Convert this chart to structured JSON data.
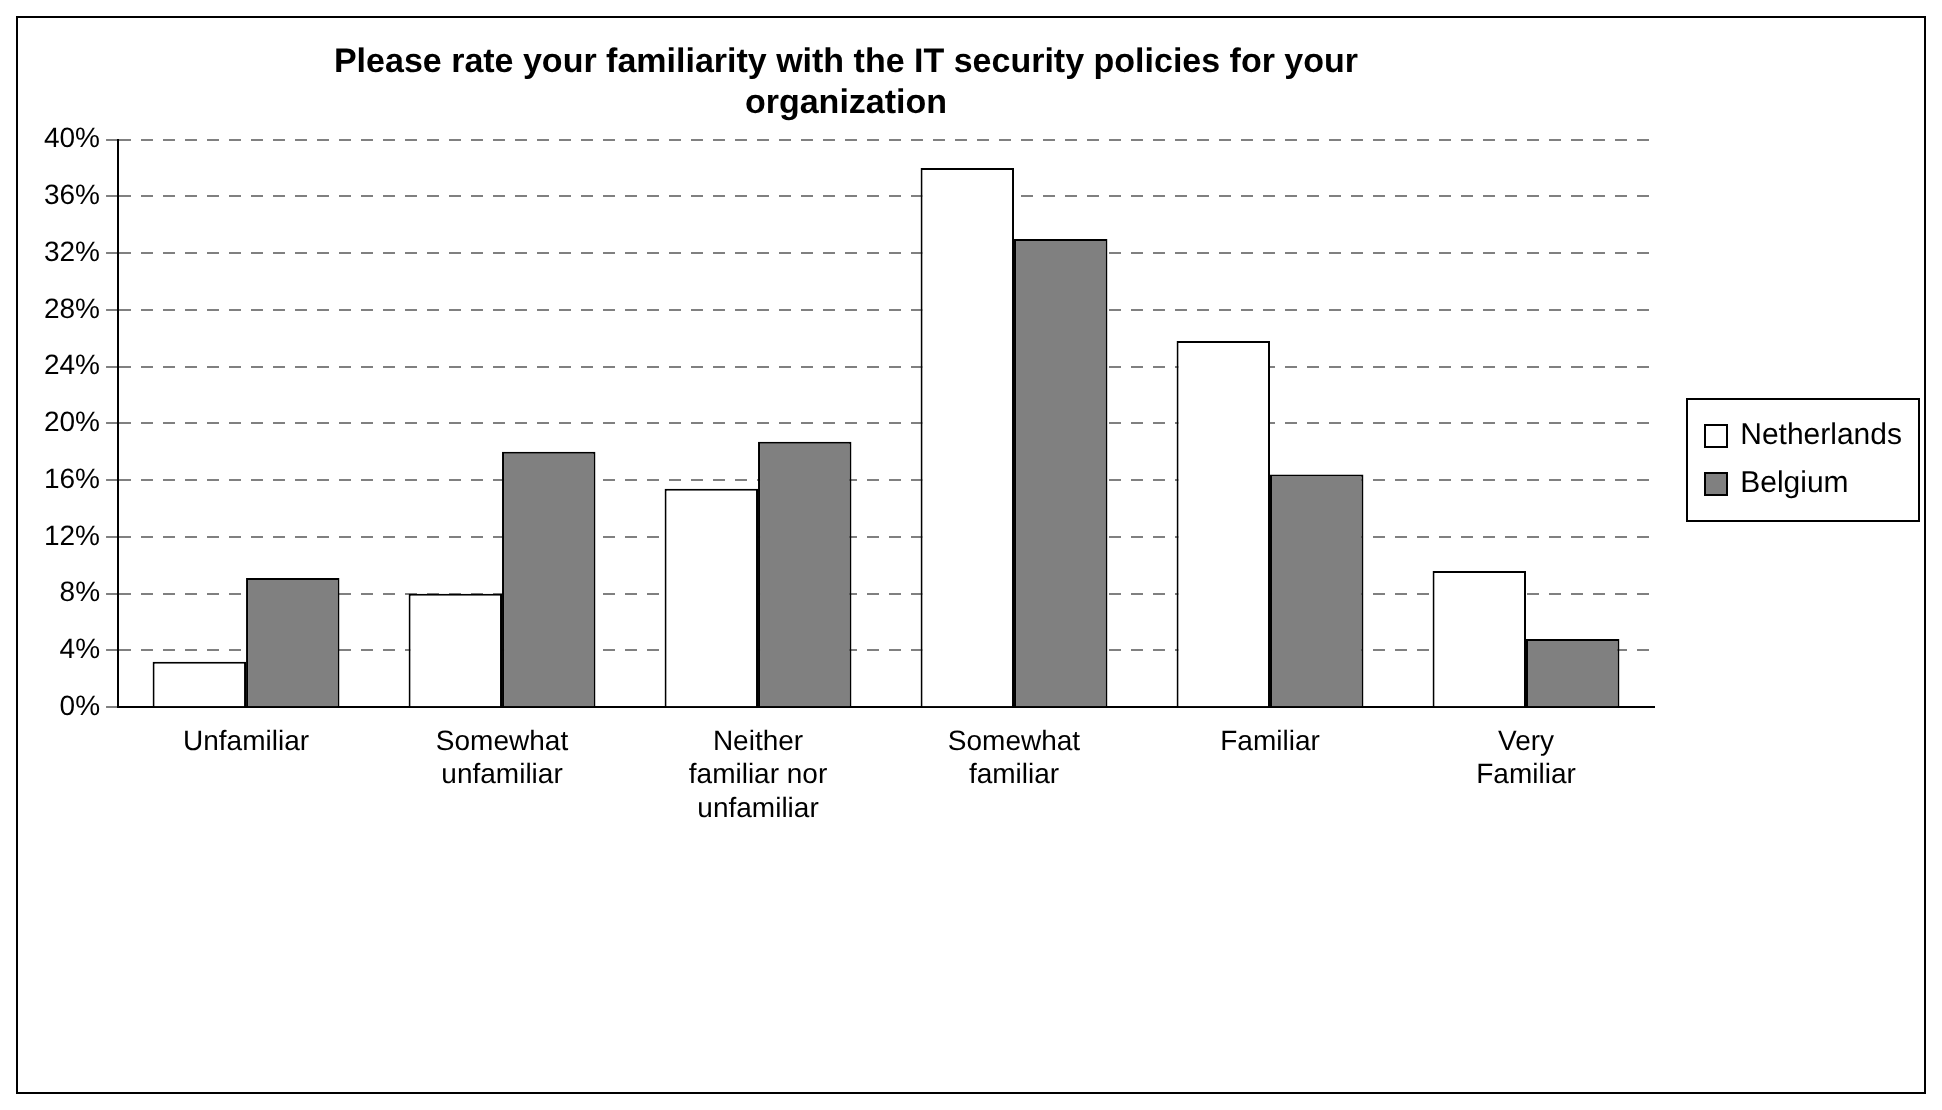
{
  "chart_data": {
    "type": "bar",
    "title": "Please rate your familiarity with the IT security policies for your organization",
    "categories": [
      "Unfamiliar",
      "Somewhat unfamiliar",
      "Neither familiar nor unfamiliar",
      "Somewhat familiar",
      "Familiar",
      "Very Familiar"
    ],
    "series": [
      {
        "name": "Netherlands",
        "color": "#ffffff",
        "values": [
          3.2,
          8.0,
          15.4,
          38.0,
          25.8,
          9.6
        ]
      },
      {
        "name": "Belgium",
        "color": "#808080",
        "values": [
          9.1,
          18.0,
          18.7,
          33.0,
          16.4,
          4.8
        ]
      }
    ],
    "ylim": [
      0,
      40
    ],
    "yticks": [
      {
        "value": 0,
        "label": "0%"
      },
      {
        "value": 4,
        "label": "4%"
      },
      {
        "value": 8,
        "label": "8%"
      },
      {
        "value": 12,
        "label": "12%"
      },
      {
        "value": 16,
        "label": "16%"
      },
      {
        "value": 20,
        "label": "20%"
      },
      {
        "value": 24,
        "label": "24%"
      },
      {
        "value": 28,
        "label": "28%"
      },
      {
        "value": 32,
        "label": "32%"
      },
      {
        "value": 36,
        "label": "36%"
      },
      {
        "value": 40,
        "label": "40%"
      }
    ],
    "grid": "y",
    "legend": "right"
  }
}
